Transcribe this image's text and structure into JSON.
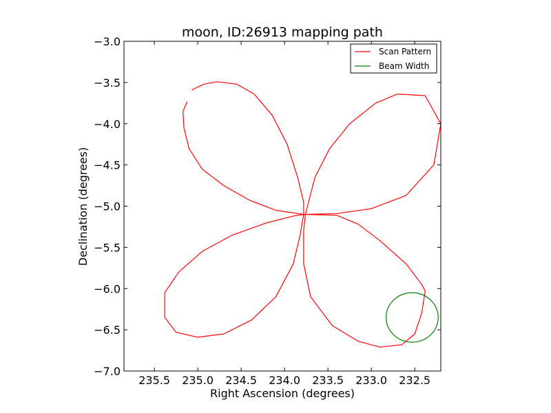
{
  "chart_data": {
    "type": "line",
    "title": "moon, ID:26913 mapping path",
    "xlabel": "Right Ascension (degrees)",
    "ylabel": "Declination (degrees)",
    "xlim": [
      235.85,
      232.2
    ],
    "ylim": [
      -7.0,
      -3.0
    ],
    "x_inverted": true,
    "xticks": [
      235.5,
      235.0,
      234.5,
      234.0,
      233.5,
      233.0,
      232.5
    ],
    "xtick_labels": [
      "235.5",
      "235.0",
      "234.5",
      "234.0",
      "233.5",
      "233.0",
      "232.5"
    ],
    "yticks": [
      -3.0,
      -3.5,
      -4.0,
      -4.5,
      -5.0,
      -5.5,
      -6.0,
      -6.5,
      -7.0
    ],
    "ytick_labels": [
      "−3.0",
      "−3.5",
      "−4.0",
      "−4.5",
      "−5.0",
      "−5.5",
      "−6.0",
      "−6.5",
      "−7.0"
    ],
    "grid": false,
    "legend": {
      "placement": "top-right",
      "entries": [
        "Scan Pattern",
        "Beam Width"
      ]
    },
    "series": [
      {
        "name": "Scan Pattern",
        "color": "#ff0000",
        "segments": [
          [
            [
              235.12,
              -3.73
            ],
            [
              235.17,
              -3.85
            ],
            [
              235.16,
              -4.05
            ],
            [
              235.1,
              -4.3
            ],
            [
              234.95,
              -4.55
            ],
            [
              234.7,
              -4.75
            ],
            [
              234.4,
              -4.93
            ],
            [
              234.1,
              -5.05
            ],
            [
              233.78,
              -5.1
            ]
          ],
          [
            [
              235.07,
              -3.59
            ],
            [
              234.93,
              -3.52
            ],
            [
              234.78,
              -3.49
            ],
            [
              234.55,
              -3.52
            ],
            [
              234.35,
              -3.64
            ],
            [
              234.14,
              -3.9
            ],
            [
              233.97,
              -4.25
            ],
            [
              233.85,
              -4.65
            ],
            [
              233.78,
              -4.95
            ],
            [
              233.78,
              -5.1
            ],
            [
              233.82,
              -5.35
            ],
            [
              233.9,
              -5.7
            ],
            [
              234.1,
              -6.1
            ],
            [
              234.38,
              -6.38
            ],
            [
              234.7,
              -6.55
            ],
            [
              235.0,
              -6.59
            ],
            [
              235.25,
              -6.53
            ],
            [
              235.38,
              -6.35
            ],
            [
              235.38,
              -6.05
            ],
            [
              235.22,
              -5.8
            ],
            [
              234.95,
              -5.55
            ],
            [
              234.6,
              -5.35
            ],
            [
              234.2,
              -5.2
            ],
            [
              233.9,
              -5.12
            ],
            [
              233.78,
              -5.1
            ],
            [
              233.4,
              -5.11
            ],
            [
              233.15,
              -5.22
            ],
            [
              232.9,
              -5.42
            ],
            [
              232.6,
              -5.7
            ],
            [
              232.42,
              -5.95
            ],
            [
              232.38,
              -6.03
            ],
            [
              232.42,
              -6.3
            ],
            [
              232.5,
              -6.55
            ],
            [
              232.65,
              -6.68
            ],
            [
              232.9,
              -6.71
            ],
            [
              233.15,
              -6.64
            ],
            [
              233.45,
              -6.45
            ],
            [
              233.7,
              -6.1
            ],
            [
              233.78,
              -5.7
            ],
            [
              233.78,
              -5.3
            ],
            [
              233.76,
              -5.1
            ],
            [
              233.65,
              -4.65
            ],
            [
              233.48,
              -4.3
            ],
            [
              233.25,
              -4.0
            ],
            [
              232.95,
              -3.75
            ],
            [
              232.7,
              -3.64
            ],
            [
              232.38,
              -3.66
            ],
            [
              232.2,
              -4.0
            ],
            [
              232.28,
              -4.5
            ],
            [
              232.6,
              -4.87
            ],
            [
              233.0,
              -5.03
            ],
            [
              233.4,
              -5.09
            ],
            [
              233.78,
              -5.1
            ]
          ]
        ]
      },
      {
        "name": "Beam Width",
        "color": "#008000",
        "shape": "circle",
        "center": [
          232.53,
          -6.35
        ],
        "radius_deg": 0.3
      }
    ]
  }
}
